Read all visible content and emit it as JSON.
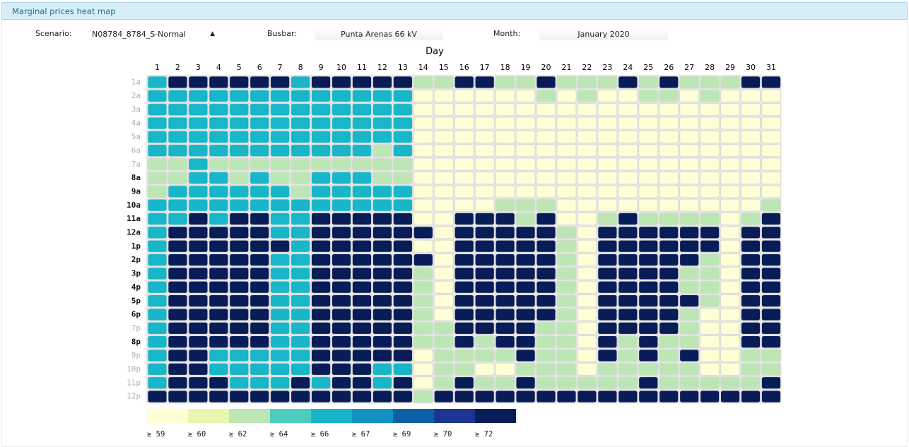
{
  "header": {
    "title": "Marginal prices heat map"
  },
  "controls": {
    "scenario": {
      "label": "Scenario:",
      "value": "N08784_8784_S-Normal"
    },
    "busbar": {
      "label": "Busbar:",
      "value": "Punta Arenas 66 kV"
    },
    "month": {
      "label": "Month:",
      "value": "January 2020"
    }
  },
  "chart_data": {
    "type": "heatmap",
    "title": "Day",
    "x": [
      1,
      2,
      3,
      4,
      5,
      6,
      7,
      8,
      9,
      10,
      11,
      12,
      13,
      14,
      15,
      16,
      17,
      18,
      19,
      20,
      21,
      22,
      23,
      24,
      25,
      26,
      27,
      28,
      29,
      30,
      31
    ],
    "y": [
      "1a",
      "2a",
      "3a",
      "4a",
      "5a",
      "6a",
      "7a",
      "8a",
      "9a",
      "10a",
      "11a",
      "12a",
      "1p",
      "2p",
      "3p",
      "4p",
      "5p",
      "6p",
      "7p",
      "8p",
      "9p",
      "10p",
      "11p",
      "12p"
    ],
    "values": [
      [
        66,
        72,
        72,
        72,
        72,
        72,
        72,
        66,
        72,
        72,
        72,
        72,
        72,
        62,
        62,
        72,
        72,
        62,
        62,
        72,
        62,
        62,
        62,
        72,
        62,
        72,
        62,
        62,
        62,
        72,
        72
      ],
      [
        66,
        66,
        66,
        66,
        66,
        66,
        66,
        66,
        66,
        66,
        66,
        66,
        66,
        59,
        59,
        59,
        59,
        59,
        59,
        62,
        59,
        62,
        59,
        59,
        62,
        62,
        59,
        62,
        59,
        59,
        59
      ],
      [
        66,
        66,
        66,
        66,
        66,
        66,
        66,
        66,
        66,
        66,
        66,
        66,
        66,
        59,
        59,
        59,
        59,
        59,
        59,
        59,
        59,
        59,
        59,
        59,
        59,
        59,
        59,
        59,
        59,
        59,
        59
      ],
      [
        66,
        66,
        66,
        66,
        66,
        66,
        66,
        66,
        66,
        66,
        66,
        66,
        66,
        59,
        59,
        59,
        59,
        59,
        59,
        59,
        59,
        59,
        59,
        59,
        59,
        59,
        59,
        59,
        59,
        59,
        59
      ],
      [
        66,
        66,
        66,
        66,
        66,
        66,
        66,
        66,
        66,
        66,
        66,
        66,
        66,
        59,
        59,
        59,
        59,
        59,
        59,
        59,
        59,
        59,
        59,
        59,
        59,
        59,
        59,
        59,
        59,
        59,
        59
      ],
      [
        66,
        66,
        66,
        66,
        66,
        66,
        66,
        66,
        66,
        66,
        66,
        62,
        66,
        59,
        59,
        59,
        59,
        59,
        59,
        59,
        59,
        59,
        59,
        59,
        59,
        59,
        59,
        59,
        59,
        59,
        59
      ],
      [
        62,
        62,
        66,
        62,
        62,
        62,
        62,
        62,
        62,
        62,
        62,
        62,
        62,
        59,
        59,
        59,
        59,
        59,
        59,
        59,
        59,
        59,
        59,
        59,
        59,
        59,
        59,
        59,
        59,
        59,
        59
      ],
      [
        62,
        62,
        66,
        66,
        62,
        66,
        62,
        62,
        66,
        66,
        66,
        62,
        62,
        59,
        59,
        59,
        59,
        59,
        59,
        59,
        59,
        59,
        59,
        59,
        59,
        59,
        59,
        59,
        59,
        59,
        59
      ],
      [
        62,
        66,
        66,
        66,
        66,
        66,
        66,
        62,
        66,
        66,
        66,
        66,
        66,
        59,
        59,
        59,
        59,
        59,
        59,
        59,
        59,
        59,
        59,
        59,
        59,
        59,
        59,
        59,
        59,
        59,
        59
      ],
      [
        66,
        66,
        66,
        66,
        66,
        66,
        66,
        66,
        66,
        66,
        66,
        66,
        66,
        59,
        59,
        59,
        59,
        62,
        62,
        62,
        59,
        59,
        59,
        59,
        59,
        59,
        59,
        59,
        59,
        59,
        62
      ],
      [
        66,
        66,
        72,
        66,
        72,
        72,
        66,
        66,
        72,
        72,
        72,
        72,
        72,
        59,
        59,
        72,
        72,
        72,
        62,
        72,
        59,
        59,
        62,
        72,
        62,
        62,
        62,
        62,
        59,
        62,
        72
      ],
      [
        66,
        72,
        72,
        72,
        72,
        72,
        66,
        66,
        72,
        72,
        72,
        72,
        72,
        72,
        59,
        72,
        72,
        72,
        72,
        72,
        62,
        59,
        72,
        72,
        72,
        72,
        72,
        72,
        59,
        72,
        72
      ],
      [
        66,
        72,
        72,
        72,
        72,
        72,
        72,
        66,
        72,
        72,
        72,
        72,
        72,
        59,
        59,
        72,
        72,
        72,
        72,
        72,
        62,
        59,
        72,
        72,
        72,
        72,
        72,
        72,
        59,
        72,
        72
      ],
      [
        66,
        72,
        72,
        72,
        72,
        72,
        66,
        66,
        72,
        72,
        72,
        72,
        72,
        72,
        59,
        72,
        72,
        72,
        72,
        72,
        62,
        59,
        72,
        72,
        72,
        72,
        72,
        62,
        59,
        72,
        72
      ],
      [
        66,
        72,
        72,
        72,
        72,
        72,
        66,
        66,
        72,
        72,
        72,
        72,
        72,
        62,
        59,
        72,
        72,
        72,
        72,
        72,
        62,
        59,
        72,
        72,
        72,
        72,
        62,
        62,
        59,
        72,
        72
      ],
      [
        66,
        72,
        72,
        72,
        72,
        72,
        66,
        66,
        72,
        72,
        72,
        72,
        72,
        62,
        59,
        72,
        72,
        72,
        72,
        72,
        62,
        59,
        72,
        72,
        72,
        72,
        62,
        62,
        59,
        72,
        72
      ],
      [
        66,
        72,
        72,
        72,
        72,
        72,
        66,
        66,
        72,
        72,
        72,
        72,
        72,
        62,
        59,
        72,
        72,
        72,
        72,
        72,
        62,
        59,
        72,
        72,
        72,
        72,
        72,
        62,
        59,
        72,
        72
      ],
      [
        66,
        72,
        72,
        72,
        72,
        72,
        66,
        66,
        72,
        72,
        72,
        72,
        72,
        62,
        59,
        72,
        72,
        72,
        72,
        72,
        62,
        59,
        72,
        72,
        72,
        72,
        62,
        59,
        59,
        72,
        72
      ],
      [
        66,
        72,
        72,
        72,
        72,
        72,
        66,
        66,
        72,
        72,
        72,
        72,
        72,
        62,
        62,
        72,
        72,
        72,
        72,
        62,
        62,
        59,
        72,
        72,
        72,
        72,
        62,
        59,
        59,
        72,
        72
      ],
      [
        66,
        72,
        72,
        72,
        72,
        72,
        66,
        66,
        72,
        72,
        72,
        72,
        72,
        62,
        62,
        72,
        62,
        72,
        72,
        62,
        62,
        59,
        72,
        62,
        72,
        62,
        62,
        59,
        59,
        72,
        72
      ],
      [
        66,
        72,
        72,
        66,
        66,
        66,
        66,
        66,
        72,
        72,
        72,
        72,
        72,
        59,
        62,
        62,
        62,
        62,
        72,
        62,
        62,
        59,
        72,
        62,
        72,
        62,
        72,
        59,
        59,
        62,
        62
      ],
      [
        66,
        72,
        72,
        66,
        66,
        66,
        66,
        66,
        72,
        72,
        72,
        66,
        66,
        59,
        62,
        62,
        59,
        59,
        62,
        62,
        62,
        59,
        62,
        62,
        62,
        62,
        62,
        59,
        59,
        62,
        62
      ],
      [
        66,
        72,
        72,
        72,
        66,
        66,
        66,
        72,
        66,
        72,
        72,
        66,
        72,
        59,
        62,
        72,
        62,
        62,
        72,
        62,
        62,
        62,
        62,
        62,
        72,
        62,
        62,
        62,
        62,
        62,
        72
      ],
      [
        72,
        72,
        72,
        72,
        72,
        72,
        72,
        72,
        72,
        72,
        72,
        72,
        72,
        62,
        72,
        72,
        72,
        72,
        72,
        72,
        72,
        72,
        72,
        72,
        72,
        72,
        72,
        72,
        72,
        72,
        72
      ]
    ],
    "legend": [
      {
        "value": 59,
        "label": "≥ 59",
        "color": "#ffffd6"
      },
      {
        "value": 60,
        "label": "≥ 60",
        "color": "#e8f7b0"
      },
      {
        "value": 62,
        "label": "≥ 62",
        "color": "#bde6b5"
      },
      {
        "value": 64,
        "label": "≥ 64",
        "color": "#4ecdbf"
      },
      {
        "value": 66,
        "label": "≥ 66",
        "color": "#17b6c8"
      },
      {
        "value": 67,
        "label": "≥ 67",
        "color": "#1192c2"
      },
      {
        "value": 69,
        "label": "≥ 69",
        "color": "#0d5fa6"
      },
      {
        "value": 70,
        "label": "≥ 70",
        "color": "#1d3595"
      },
      {
        "value": 72,
        "label": "≥ 72",
        "color": "#081d58"
      }
    ]
  }
}
